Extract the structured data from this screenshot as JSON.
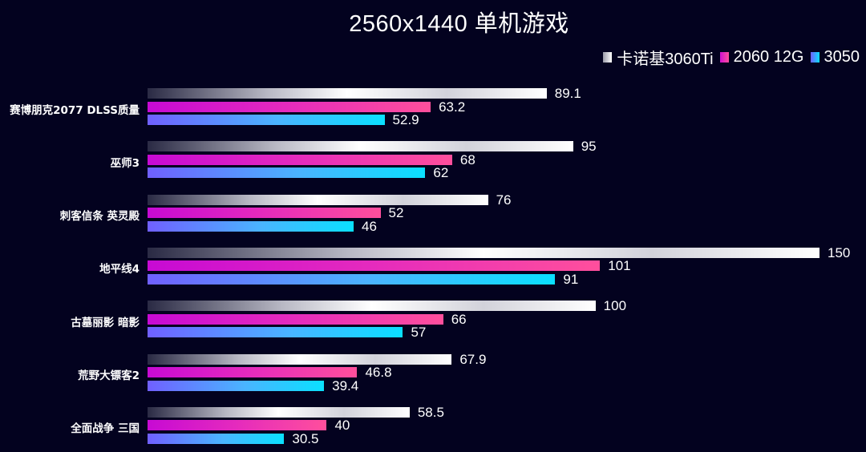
{
  "chart_data": {
    "type": "bar",
    "orientation": "horizontal",
    "title": "2560x1440  单机游戏",
    "xlabel": "",
    "ylabel": "",
    "xlim": [
      0,
      150
    ],
    "grid": false,
    "legend_position": "top-right",
    "categories": [
      "赛博朋克2077 DLSS质量",
      "巫师3",
      "刺客信条 英灵殿",
      "地平线4",
      "古墓丽影 暗影",
      "荒野大镖客2",
      "全面战争 三国"
    ],
    "series": [
      {
        "name": "卡诺基3060Ti",
        "color": "#ffffff",
        "values": [
          89.1,
          95,
          76,
          150,
          100,
          67.9,
          58.5
        ]
      },
      {
        "name": "2060 12G",
        "color": "#e52bbd",
        "values": [
          63.2,
          68,
          52,
          101,
          66,
          46.8,
          40
        ]
      },
      {
        "name": "3050",
        "color": "#4ab4ff",
        "values": [
          52.9,
          62,
          46,
          91,
          57,
          39.4,
          30.5
        ]
      }
    ]
  },
  "header": {
    "title": "2560x1440  单机游戏"
  },
  "legend": [
    {
      "label": "卡诺基3060Ti",
      "swatch": "linear-gradient(90deg,#9a9aa8,#ffffff)"
    },
    {
      "label": "2060 12G",
      "swatch": "linear-gradient(90deg,#d010d0,#ff4f9c)"
    },
    {
      "label": "3050",
      "swatch": "linear-gradient(90deg,#7060ff,#0ae0ff)"
    }
  ],
  "labels": {
    "rows": [
      {
        "name": "赛博朋克2077 DLSS质量",
        "v": [
          "89.1",
          "63.2",
          "52.9"
        ]
      },
      {
        "name": "巫师3",
        "v": [
          "95",
          "68",
          "62"
        ]
      },
      {
        "name": "刺客信条  英灵殿",
        "v": [
          "76",
          "52",
          "46"
        ]
      },
      {
        "name": "地平线4",
        "v": [
          "150",
          "101",
          "91"
        ]
      },
      {
        "name": "古墓丽影  暗影",
        "v": [
          "100",
          "66",
          "57"
        ]
      },
      {
        "name": "荒野大镖客2",
        "v": [
          "67.9",
          "46.8",
          "39.4"
        ]
      },
      {
        "name": "全面战争  三国",
        "v": [
          "58.5",
          "40",
          "30.5"
        ]
      }
    ]
  }
}
